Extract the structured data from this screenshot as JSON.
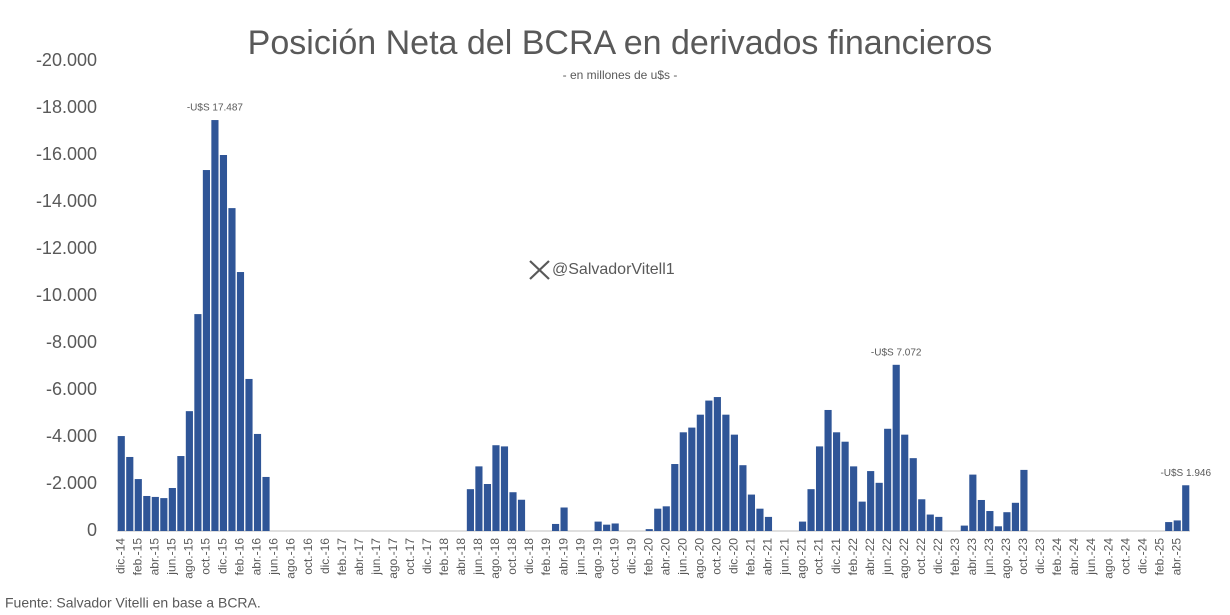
{
  "chart_data": {
    "type": "bar",
    "title": "Posición Neta del BCRA en derivados financieros",
    "subtitle": "- en millones de u$s -",
    "source": "Fuente: Salvador Vitelli en base a BCRA.",
    "watermark": "@SalvadorVitell1",
    "color": "#2f5597",
    "grid": false,
    "ylim": [
      0,
      -20000
    ],
    "yticks": [
      0,
      {
        "value": -2000,
        "label": "-2.000"
      },
      {
        "value": -4000,
        "label": "-4.000"
      },
      {
        "value": -6000,
        "label": "-6.000"
      },
      {
        "value": -8000,
        "label": "-8.000"
      },
      {
        "value": -10000,
        "label": "-10.000"
      },
      {
        "value": -12000,
        "label": "-12.000"
      },
      {
        "value": -14000,
        "label": "-14.000"
      },
      {
        "value": -16000,
        "label": "-16.000"
      },
      {
        "value": -18000,
        "label": "-18.000"
      },
      {
        "value": -20000,
        "label": "-20.000"
      }
    ],
    "categories": [
      "dic.-14",
      null,
      "feb.-15",
      null,
      "abr.-15",
      null,
      "jun.-15",
      null,
      "ago.-15",
      null,
      "oct.-15",
      null,
      "dic.-15",
      null,
      "feb.-16",
      null,
      "abr.-16",
      null,
      "jun.-16",
      null,
      "ago.-16",
      null,
      "oct.-16",
      null,
      "dic.-16",
      null,
      "feb.-17",
      null,
      "abr.-17",
      null,
      "jun.-17",
      null,
      "ago.-17",
      null,
      "oct.-17",
      null,
      "dic.-17",
      null,
      "feb.-18",
      null,
      "abr.-18",
      null,
      "jun.-18",
      null,
      "ago.-18",
      null,
      "oct.-18",
      null,
      "dic.-18",
      null,
      "feb.-19",
      null,
      "abr.-19",
      null,
      "jun.-19",
      null,
      "ago.-19",
      null,
      "oct.-19",
      null,
      "dic.-19",
      null,
      "feb.-20",
      null,
      "abr.-20",
      null,
      "jun.-20",
      null,
      "ago.-20",
      null,
      "oct.-20",
      null,
      "dic.-20",
      null,
      "feb.-21",
      null,
      "abr.-21",
      null,
      "jun.-21",
      null,
      "ago.-21",
      null,
      "oct.-21",
      null,
      "dic.-21",
      null,
      "feb.-22",
      null,
      "abr.-22",
      null,
      "jun.-22",
      null,
      "ago.-22",
      null,
      "oct.-22",
      null,
      "dic.-22",
      null,
      "feb.-23",
      null,
      "abr.-23",
      null,
      "jun.-23",
      null,
      "ago.-23",
      null,
      "oct.-23",
      null,
      "dic.-23",
      null,
      "feb.-24",
      null,
      "abr.-24",
      null,
      "jun.-24",
      null,
      "ago.-24",
      null,
      "oct.-24",
      null,
      "dic.-24",
      null,
      "feb.-25",
      null,
      "abr.-25",
      null
    ],
    "values": [
      -4040,
      -3150,
      -2210,
      -1490,
      -1450,
      -1400,
      -1830,
      -3190,
      -5100,
      -9230,
      -15360,
      -17487,
      -16000,
      -13740,
      -11020,
      -6470,
      -4130,
      -2300,
      0,
      0,
      0,
      0,
      0,
      0,
      0,
      0,
      0,
      0,
      0,
      0,
      0,
      0,
      0,
      0,
      0,
      0,
      0,
      0,
      0,
      0,
      0,
      -1780,
      -2750,
      -2000,
      -3650,
      -3600,
      -1650,
      -1330,
      0,
      0,
      0,
      -300,
      -1000,
      0,
      0,
      0,
      -400,
      -270,
      -320,
      0,
      0,
      0,
      -80,
      -950,
      -1050,
      -2850,
      -4200,
      -4400,
      -4950,
      -5550,
      -5700,
      -4950,
      -4100,
      -2800,
      -1550,
      -950,
      -600,
      0,
      0,
      0,
      -400,
      -1780,
      -3600,
      -5150,
      -4200,
      -3800,
      -2750,
      -1250,
      -2550,
      -2050,
      -4350,
      -7072,
      -4100,
      -3100,
      -1350,
      -700,
      -600,
      0,
      0,
      -230,
      -2400,
      -1320,
      -850,
      -200,
      -800,
      -1200,
      -2600,
      0,
      0,
      0,
      0,
      0,
      0,
      0,
      0,
      0,
      0,
      0,
      0,
      0,
      0,
      0,
      0,
      -380,
      -450,
      -1946
    ],
    "value_labels": [
      null,
      null,
      null,
      null,
      null,
      null,
      null,
      null,
      null,
      null,
      null,
      "-U$S 17.487",
      null,
      null,
      null,
      null,
      null,
      null,
      null,
      null,
      null,
      null,
      null,
      null,
      null,
      null,
      null,
      null,
      null,
      null,
      null,
      null,
      null,
      null,
      null,
      null,
      null,
      null,
      null,
      null,
      null,
      null,
      null,
      null,
      null,
      null,
      null,
      null,
      null,
      null,
      null,
      null,
      null,
      null,
      null,
      null,
      null,
      null,
      null,
      null,
      null,
      null,
      null,
      null,
      null,
      null,
      null,
      null,
      null,
      null,
      null,
      null,
      null,
      null,
      null,
      null,
      null,
      null,
      null,
      null,
      null,
      null,
      null,
      null,
      null,
      null,
      null,
      null,
      null,
      null,
      null,
      "-U$S 7.072",
      null,
      null,
      null,
      null,
      null,
      null,
      null,
      null,
      null,
      null,
      null,
      null,
      null,
      null,
      null,
      null,
      null,
      null,
      null,
      null,
      null,
      null,
      null,
      null,
      null,
      null,
      null,
      null,
      null,
      null,
      null,
      null,
      null,
      "-U$S 1.946"
    ]
  }
}
